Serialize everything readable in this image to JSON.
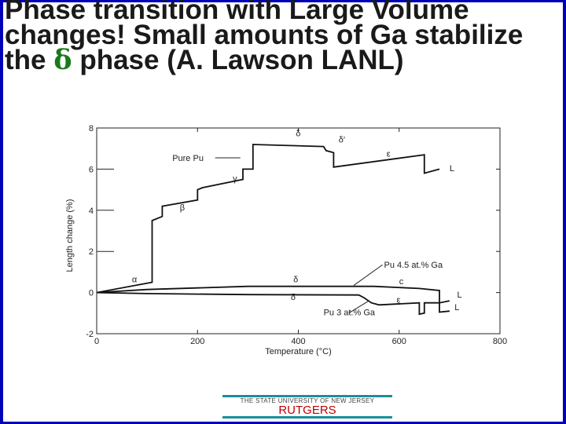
{
  "slide": {
    "title_part1": "Phase transition with Large Volume changes! Small amounts of Ga stabilize the ",
    "title_delta": "δ",
    "title_part2": " phase (A. Lawson LANL)"
  },
  "footer": {
    "university": "THE STATE UNIVERSITY OF NEW JERSEY",
    "name": "RUTGERS"
  },
  "colors": {
    "frame": "#0000b8",
    "delta": "#1a7a1a",
    "footer_bar": "#1a8f9a",
    "rutgers": "#c00000"
  },
  "chart_data": {
    "type": "line",
    "xlabel": "Temperature (°C)",
    "ylabel": "Length change (%)",
    "xlim": [
      0,
      800
    ],
    "ylim": [
      -2,
      8
    ],
    "x_ticks": [
      "0",
      "200",
      "400",
      "600",
      "800"
    ],
    "y_ticks": [
      "-2",
      "0",
      "2",
      "4",
      "6",
      "8"
    ],
    "series": [
      {
        "name": "Pure Pu",
        "x": [
          0,
          110,
          110,
          130,
          130,
          200,
          200,
          210,
          210,
          290,
          290,
          310,
          310,
          450,
          455,
          470,
          470,
          650,
          650,
          680
        ],
        "y": [
          0,
          0.5,
          3.5,
          3.7,
          4.2,
          4.5,
          5.0,
          5.1,
          5.1,
          5.5,
          6.0,
          6.0,
          7.2,
          7.1,
          6.9,
          6.8,
          6.1,
          6.7,
          5.8,
          6.0
        ]
      },
      {
        "name": "Pu 4.5 at.% Ga",
        "x": [
          0,
          100,
          300,
          550,
          640,
          680,
          680,
          700
        ],
        "y": [
          0,
          0.15,
          0.3,
          0.3,
          0.2,
          0.1,
          -0.5,
          -0.4
        ]
      },
      {
        "name": "Pu 3 at.% Ga",
        "x": [
          0,
          100,
          300,
          520,
          530,
          545,
          560,
          640,
          640,
          650,
          650,
          680,
          680,
          700
        ],
        "y": [
          0,
          -0.05,
          -0.1,
          -0.12,
          -0.25,
          -0.5,
          -0.6,
          -0.5,
          -1.05,
          -1.0,
          -0.5,
          -0.5,
          -0.95,
          -0.9
        ]
      }
    ],
    "annotations": [
      {
        "text": "α",
        "x": 70,
        "y": 0.5
      },
      {
        "text": "β",
        "x": 165,
        "y": 4.0
      },
      {
        "text": "γ",
        "x": 270,
        "y": 5.4
      },
      {
        "text": "δ",
        "x": 395,
        "y": 7.6
      },
      {
        "text": "δ′",
        "x": 480,
        "y": 7.3
      },
      {
        "text": "ε",
        "x": 575,
        "y": 6.6
      },
      {
        "text": "L",
        "x": 700,
        "y": 5.9
      },
      {
        "text": "δ",
        "x": 390,
        "y": 0.5
      },
      {
        "text": "δ",
        "x": 385,
        "y": -0.35
      },
      {
        "text": "c",
        "x": 600,
        "y": 0.4
      },
      {
        "text": "ε",
        "x": 595,
        "y": -0.5
      },
      {
        "text": "L",
        "x": 715,
        "y": -0.25
      },
      {
        "text": "L",
        "x": 710,
        "y": -0.85
      },
      {
        "text": "Pure Pu",
        "x": 150,
        "y": 6.4
      },
      {
        "text": "Pu 4.5 at.% Ga",
        "x": 570,
        "y": 1.2
      },
      {
        "text": "Pu 3 at.% Ga",
        "x": 450,
        "y": -1.1
      }
    ]
  }
}
